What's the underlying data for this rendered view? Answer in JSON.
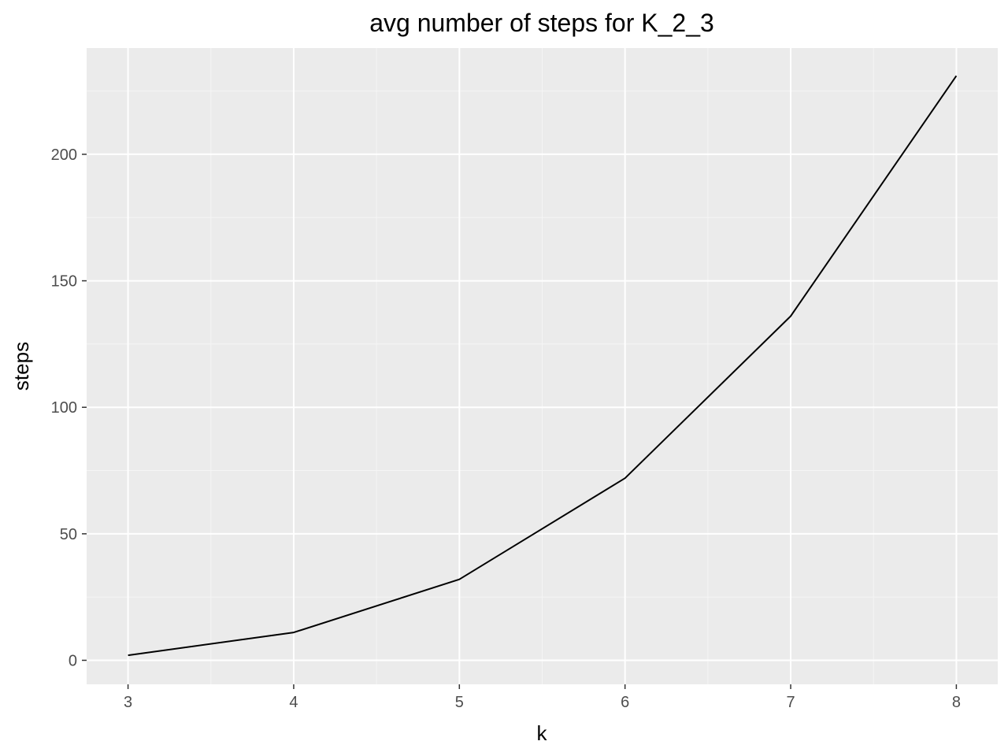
{
  "chart_data": {
    "type": "line",
    "title": "avg number of steps for K_2_3",
    "xlabel": "k",
    "ylabel": "steps",
    "x": [
      3,
      4,
      5,
      6,
      7,
      8
    ],
    "series": [
      {
        "values": [
          2,
          11,
          32,
          72,
          136,
          231
        ]
      }
    ],
    "xlim": [
      2.75,
      8.25
    ],
    "ylim": [
      -9.5,
      242
    ],
    "x_ticks": [
      "3",
      "4",
      "5",
      "6",
      "7",
      "8"
    ],
    "y_ticks": [
      "0",
      "50",
      "100",
      "150",
      "200"
    ],
    "grid": true,
    "legend": "none",
    "colors": {
      "panel_background": "#ebebeb",
      "grid_major": "#ffffff",
      "grid_minor": "#f5f5f5",
      "line": "#000000",
      "tick_mark": "#333333",
      "tick_label": "#4d4d4d"
    }
  }
}
